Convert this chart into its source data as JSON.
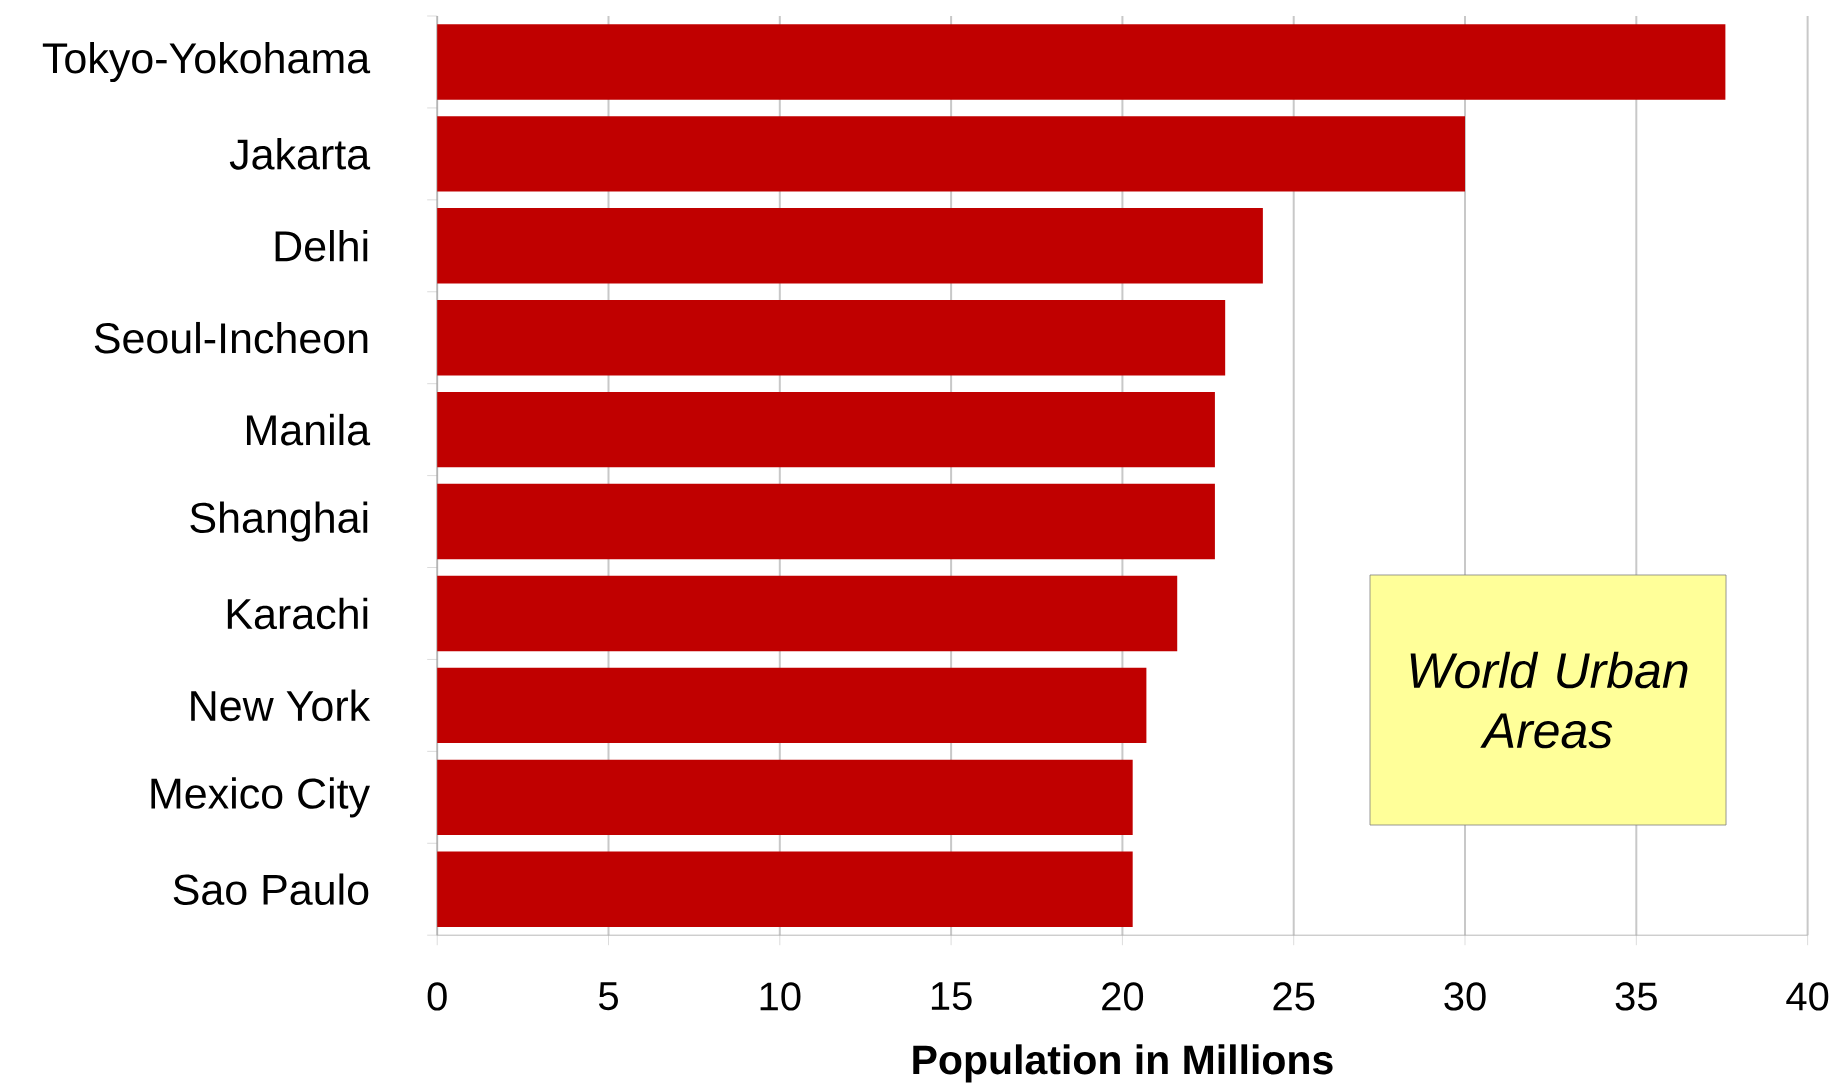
{
  "chart_data": {
    "type": "bar",
    "orientation": "horizontal",
    "categories": [
      "Tokyo-Yokohama",
      "Jakarta",
      "Delhi",
      "Seoul-Incheon",
      "Manila",
      "Shanghai",
      "Karachi",
      "New York",
      "Mexico City",
      "Sao Paulo"
    ],
    "values": [
      37.6,
      30.0,
      24.1,
      23.0,
      22.7,
      22.7,
      21.6,
      20.7,
      20.3,
      20.3
    ],
    "color": "#c00000",
    "xlabel": "Population in Millions",
    "xlim": [
      0,
      40
    ],
    "xticks": [
      0,
      5,
      10,
      15,
      20,
      25,
      30,
      35,
      40
    ],
    "grid": "x",
    "annotations": [
      "World Urban Areas"
    ]
  }
}
